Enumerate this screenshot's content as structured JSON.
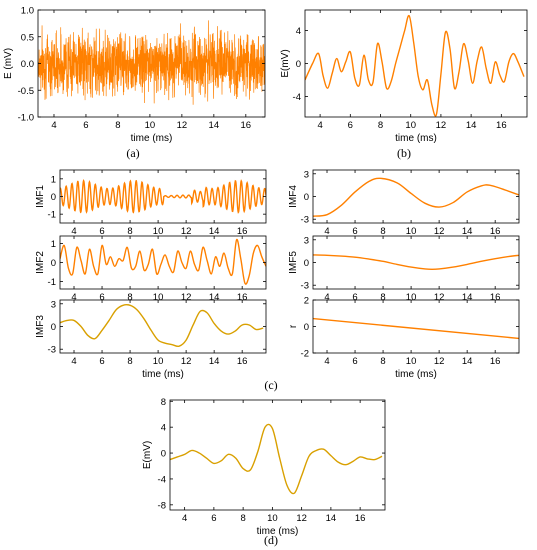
{
  "colors": {
    "orange": "#FF8000",
    "gold": "#D9A000",
    "axis": "#000000"
  },
  "chart_data": [
    {
      "id": "a",
      "caption": "(a)",
      "type": "line",
      "style": "noise",
      "color": "orange",
      "title": "",
      "xlabel": "time (ms)",
      "ylabel": "E (mV)",
      "xlim": [
        3,
        17.2
      ],
      "ylim": [
        -1,
        1
      ],
      "xticks": [
        4,
        6,
        8,
        10,
        12,
        14,
        16
      ],
      "yticks": [
        -1,
        -0.5,
        0,
        0.5,
        1
      ],
      "ytick_labels": [
        "-1.0",
        "-0.5",
        "0.0",
        "0.5",
        "1.0"
      ],
      "x": [
        3,
        17.2
      ],
      "y": [
        -0.85,
        0.85
      ]
    },
    {
      "id": "b",
      "caption": "(b)",
      "type": "line",
      "color": "orange",
      "title": "",
      "xlabel": "time (ms)",
      "ylabel": "E(mV)",
      "xlim": [
        3,
        17.7
      ],
      "ylim": [
        -6.5,
        6.5
      ],
      "xticks": [
        4,
        6,
        8,
        10,
        12,
        14,
        16
      ],
      "yticks": [
        -4,
        0,
        4
      ],
      "x": [
        3,
        3.5,
        3.9,
        4.2,
        4.5,
        4.8,
        5.1,
        5.4,
        5.7,
        6.0,
        6.3,
        6.6,
        6.9,
        7.2,
        7.5,
        7.8,
        8.1,
        8.4,
        8.7,
        9.0,
        9.3,
        9.6,
        9.9,
        10.2,
        10.5,
        10.8,
        11.1,
        11.4,
        11.7,
        12.0,
        12.3,
        12.6,
        12.9,
        13.2,
        13.5,
        13.8,
        14.1,
        14.4,
        14.7,
        15.0,
        15.3,
        15.6,
        15.9,
        16.2,
        16.5,
        16.8,
        17.1,
        17.5
      ],
      "y": [
        -2,
        0,
        1.2,
        -1.5,
        -3,
        -1.2,
        0.6,
        -1,
        0.2,
        1.4,
        -1.8,
        -2.6,
        1.0,
        -2.0,
        -2.3,
        2.4,
        0.2,
        -3,
        -2.2,
        0,
        2,
        4,
        5.8,
        2.5,
        -1.6,
        -3.2,
        -2,
        -5.0,
        -6.2,
        -1.3,
        3.8,
        1.8,
        -3,
        -1.0,
        2.4,
        0.4,
        -2.4,
        0.3,
        2.0,
        -0.6,
        -2.4,
        0.2,
        -1.4,
        -2.2,
        0.2,
        1.2,
        0.2,
        -1.6
      ]
    },
    {
      "id": "imf1",
      "type": "line",
      "style": "oscillation",
      "color": "orange",
      "title": "",
      "xlabel": "",
      "ylabel": "IMF1",
      "xlim": [
        3,
        17.7
      ],
      "ylim": [
        -1.5,
        1.5
      ],
      "xticks": [
        4,
        6,
        8,
        10,
        12,
        14,
        16
      ],
      "yticks": [
        -1,
        0,
        1
      ],
      "x": [
        3,
        17.7
      ],
      "y": [
        -1.1,
        1.1
      ]
    },
    {
      "id": "imf2",
      "type": "line",
      "color": "orange",
      "title": "",
      "xlabel": "",
      "ylabel": "IMF2",
      "xlim": [
        3,
        17.7
      ],
      "ylim": [
        -1.4,
        1.4
      ],
      "xticks": [
        4,
        6,
        8,
        10,
        12,
        14,
        16
      ],
      "yticks": [
        -1,
        0,
        1
      ],
      "x": [
        3,
        3.3,
        3.6,
        3.9,
        4.2,
        4.5,
        4.8,
        5.1,
        5.4,
        5.7,
        6.0,
        6.3,
        6.6,
        6.9,
        7.2,
        7.5,
        7.8,
        8.1,
        8.4,
        8.7,
        9.0,
        9.3,
        9.6,
        9.9,
        10.2,
        10.5,
        10.8,
        11.1,
        11.4,
        11.7,
        12.0,
        12.3,
        12.6,
        12.9,
        13.2,
        13.5,
        13.8,
        14.1,
        14.4,
        14.7,
        15.0,
        15.3,
        15.6,
        15.9,
        16.2,
        16.5,
        16.8,
        17.1,
        17.4,
        17.7
      ],
      "y": [
        0.2,
        0.9,
        -0.3,
        -0.6,
        0.8,
        0.1,
        -0.6,
        0.7,
        -0.2,
        -0.6,
        0.9,
        -0.1,
        0.3,
        -0.2,
        0.2,
        0.1,
        0.8,
        -0.3,
        -0.2,
        0.6,
        -0.4,
        -0.1,
        0.7,
        -0.6,
        -0.1,
        0.4,
        -0.2,
        -0.5,
        0.6,
        0.0,
        -0.3,
        0.6,
        -0.1,
        -0.4,
        0.8,
        0.1,
        -0.6,
        0.3,
        -0.2,
        0.5,
        -0.3,
        -0.6,
        1.2,
        0.2,
        -1.1,
        -0.7,
        0.5,
        0.9,
        0.3,
        -0.2
      ]
    },
    {
      "id": "imf3",
      "type": "line",
      "color": "gold",
      "title": "",
      "xlabel": "time (ms)",
      "ylabel": "IMF3",
      "xlim": [
        3,
        17.7
      ],
      "ylim": [
        -3.5,
        3.5
      ],
      "xticks": [
        4,
        6,
        8,
        10,
        12,
        14,
        16
      ],
      "yticks": [
        -3,
        0,
        3
      ],
      "x": [
        3,
        3.5,
        4,
        4.5,
        5,
        5.5,
        6,
        6.5,
        7,
        7.5,
        8,
        8.5,
        9,
        9.5,
        10,
        10.5,
        11,
        11.5,
        12,
        12.5,
        13,
        13.5,
        14,
        14.5,
        15,
        15.5,
        16,
        16.5,
        17,
        17.5
      ],
      "y": [
        0.5,
        0.8,
        0.8,
        0,
        -1.2,
        -1.6,
        -0.5,
        0.8,
        2.2,
        2.8,
        2.8,
        2.2,
        1.0,
        -0.5,
        -1.8,
        -2.2,
        -2.4,
        -2.6,
        -1.8,
        0.2,
        2.0,
        1.8,
        0.4,
        -0.6,
        -1.0,
        -0.6,
        0.2,
        0.2,
        -0.4,
        -0.2
      ]
    },
    {
      "id": "imf4",
      "type": "line",
      "color": "orange",
      "title": "",
      "xlabel": "",
      "ylabel": "IMF4",
      "xlim": [
        3,
        17.7
      ],
      "ylim": [
        -3.5,
        3.5
      ],
      "xticks": [
        4,
        6,
        8,
        10,
        12,
        14,
        16
      ],
      "yticks": [
        -3,
        0,
        3
      ],
      "x": [
        3,
        4,
        5,
        6,
        7,
        7.8,
        9,
        10,
        11,
        12,
        13,
        14,
        15,
        15.6,
        16.5,
        17.7
      ],
      "y": [
        -2.6,
        -2.4,
        -1.2,
        0.6,
        2.0,
        2.4,
        1.8,
        0.4,
        -0.9,
        -1.4,
        -0.8,
        0.6,
        1.4,
        1.5,
        1.0,
        0.2
      ]
    },
    {
      "id": "imf5",
      "type": "line",
      "color": "orange",
      "title": "",
      "xlabel": "",
      "ylabel": "IMF5",
      "xlim": [
        3,
        17.7
      ],
      "ylim": [
        -3.5,
        3.5
      ],
      "xticks": [
        4,
        6,
        8,
        10,
        12,
        14,
        16
      ],
      "yticks": [
        -3,
        0,
        3
      ],
      "x": [
        3,
        4,
        5,
        6,
        7,
        8,
        9,
        10,
        11,
        11.5,
        12,
        13,
        14,
        15,
        16,
        17,
        17.7
      ],
      "y": [
        1.0,
        0.95,
        0.85,
        0.7,
        0.45,
        0.15,
        -0.25,
        -0.6,
        -0.85,
        -0.9,
        -0.85,
        -0.6,
        -0.25,
        0.15,
        0.5,
        0.8,
        0.95
      ]
    },
    {
      "id": "r",
      "caption": "(c)",
      "type": "line",
      "color": "orange",
      "title": "",
      "xlabel": "time (ms)",
      "ylabel": "r",
      "xlim": [
        3,
        17.7
      ],
      "ylim": [
        -2,
        2
      ],
      "xticks": [
        4,
        6,
        8,
        10,
        12,
        14,
        16
      ],
      "yticks": [
        -2,
        0,
        2
      ],
      "x": [
        3,
        17.7
      ],
      "y": [
        0.6,
        -0.9
      ]
    },
    {
      "id": "d",
      "caption": "(d)",
      "type": "line",
      "color": "gold",
      "title": "",
      "xlabel": "time (ms)",
      "ylabel": "E(mV)",
      "xlim": [
        3,
        17.7
      ],
      "ylim": [
        -8.8,
        8.2
      ],
      "xticks": [
        4,
        6,
        8,
        10,
        12,
        14,
        16
      ],
      "yticks": [
        -8,
        -4,
        0,
        4,
        8
      ],
      "x": [
        3,
        3.5,
        4,
        4.5,
        5,
        5.5,
        6,
        6.5,
        7,
        7.5,
        8,
        8.5,
        9,
        9.5,
        10,
        10.5,
        11,
        11.5,
        12,
        12.5,
        13,
        13.5,
        14,
        14.5,
        15,
        15.5,
        16,
        16.5,
        17,
        17.5
      ],
      "y": [
        -1.0,
        -0.6,
        -0.2,
        0.4,
        0.0,
        -0.8,
        -1.6,
        -1.2,
        -0.2,
        -0.8,
        -2.4,
        -2.6,
        0.2,
        4.0,
        3.8,
        -0.8,
        -5.0,
        -6.2,
        -3.5,
        -0.5,
        0.4,
        0.6,
        -0.4,
        -1.4,
        -1.8,
        -1.3,
        -0.6,
        -0.9,
        -1.0,
        -0.5
      ]
    }
  ]
}
